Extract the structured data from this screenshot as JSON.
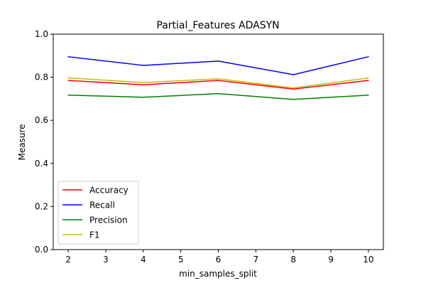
{
  "chart_data": {
    "type": "line",
    "title": "Partial_Features ADASYN",
    "xlabel": "min_samples_split",
    "ylabel": "Measure",
    "x": [
      2,
      4,
      6,
      8,
      10
    ],
    "xlim": [
      1.6,
      10.4
    ],
    "ylim": [
      0.0,
      1.0
    ],
    "xticks": [
      2,
      3,
      4,
      5,
      6,
      7,
      8,
      9,
      10
    ],
    "xtick_labels": [
      "2",
      "3",
      "4",
      "5",
      "6",
      "7",
      "8",
      "9",
      "10"
    ],
    "yticks": [
      0.0,
      0.2,
      0.4,
      0.6,
      0.8,
      1.0
    ],
    "ytick_labels": [
      "0.0",
      "0.2",
      "0.4",
      "0.6",
      "0.8",
      "1.0"
    ],
    "grid": false,
    "legend_position": "lower-left",
    "series": [
      {
        "name": "Accuracy",
        "color": "#ff0000",
        "values": [
          0.785,
          0.765,
          0.785,
          0.745,
          0.785
        ]
      },
      {
        "name": "Recall",
        "color": "#0000ff",
        "values": [
          0.895,
          0.855,
          0.875,
          0.812,
          0.895
        ]
      },
      {
        "name": "Precision",
        "color": "#008000",
        "values": [
          0.717,
          0.707,
          0.724,
          0.697,
          0.717
        ]
      },
      {
        "name": "F1",
        "color": "#bfbf00",
        "values": [
          0.797,
          0.775,
          0.793,
          0.75,
          0.797
        ]
      }
    ]
  }
}
